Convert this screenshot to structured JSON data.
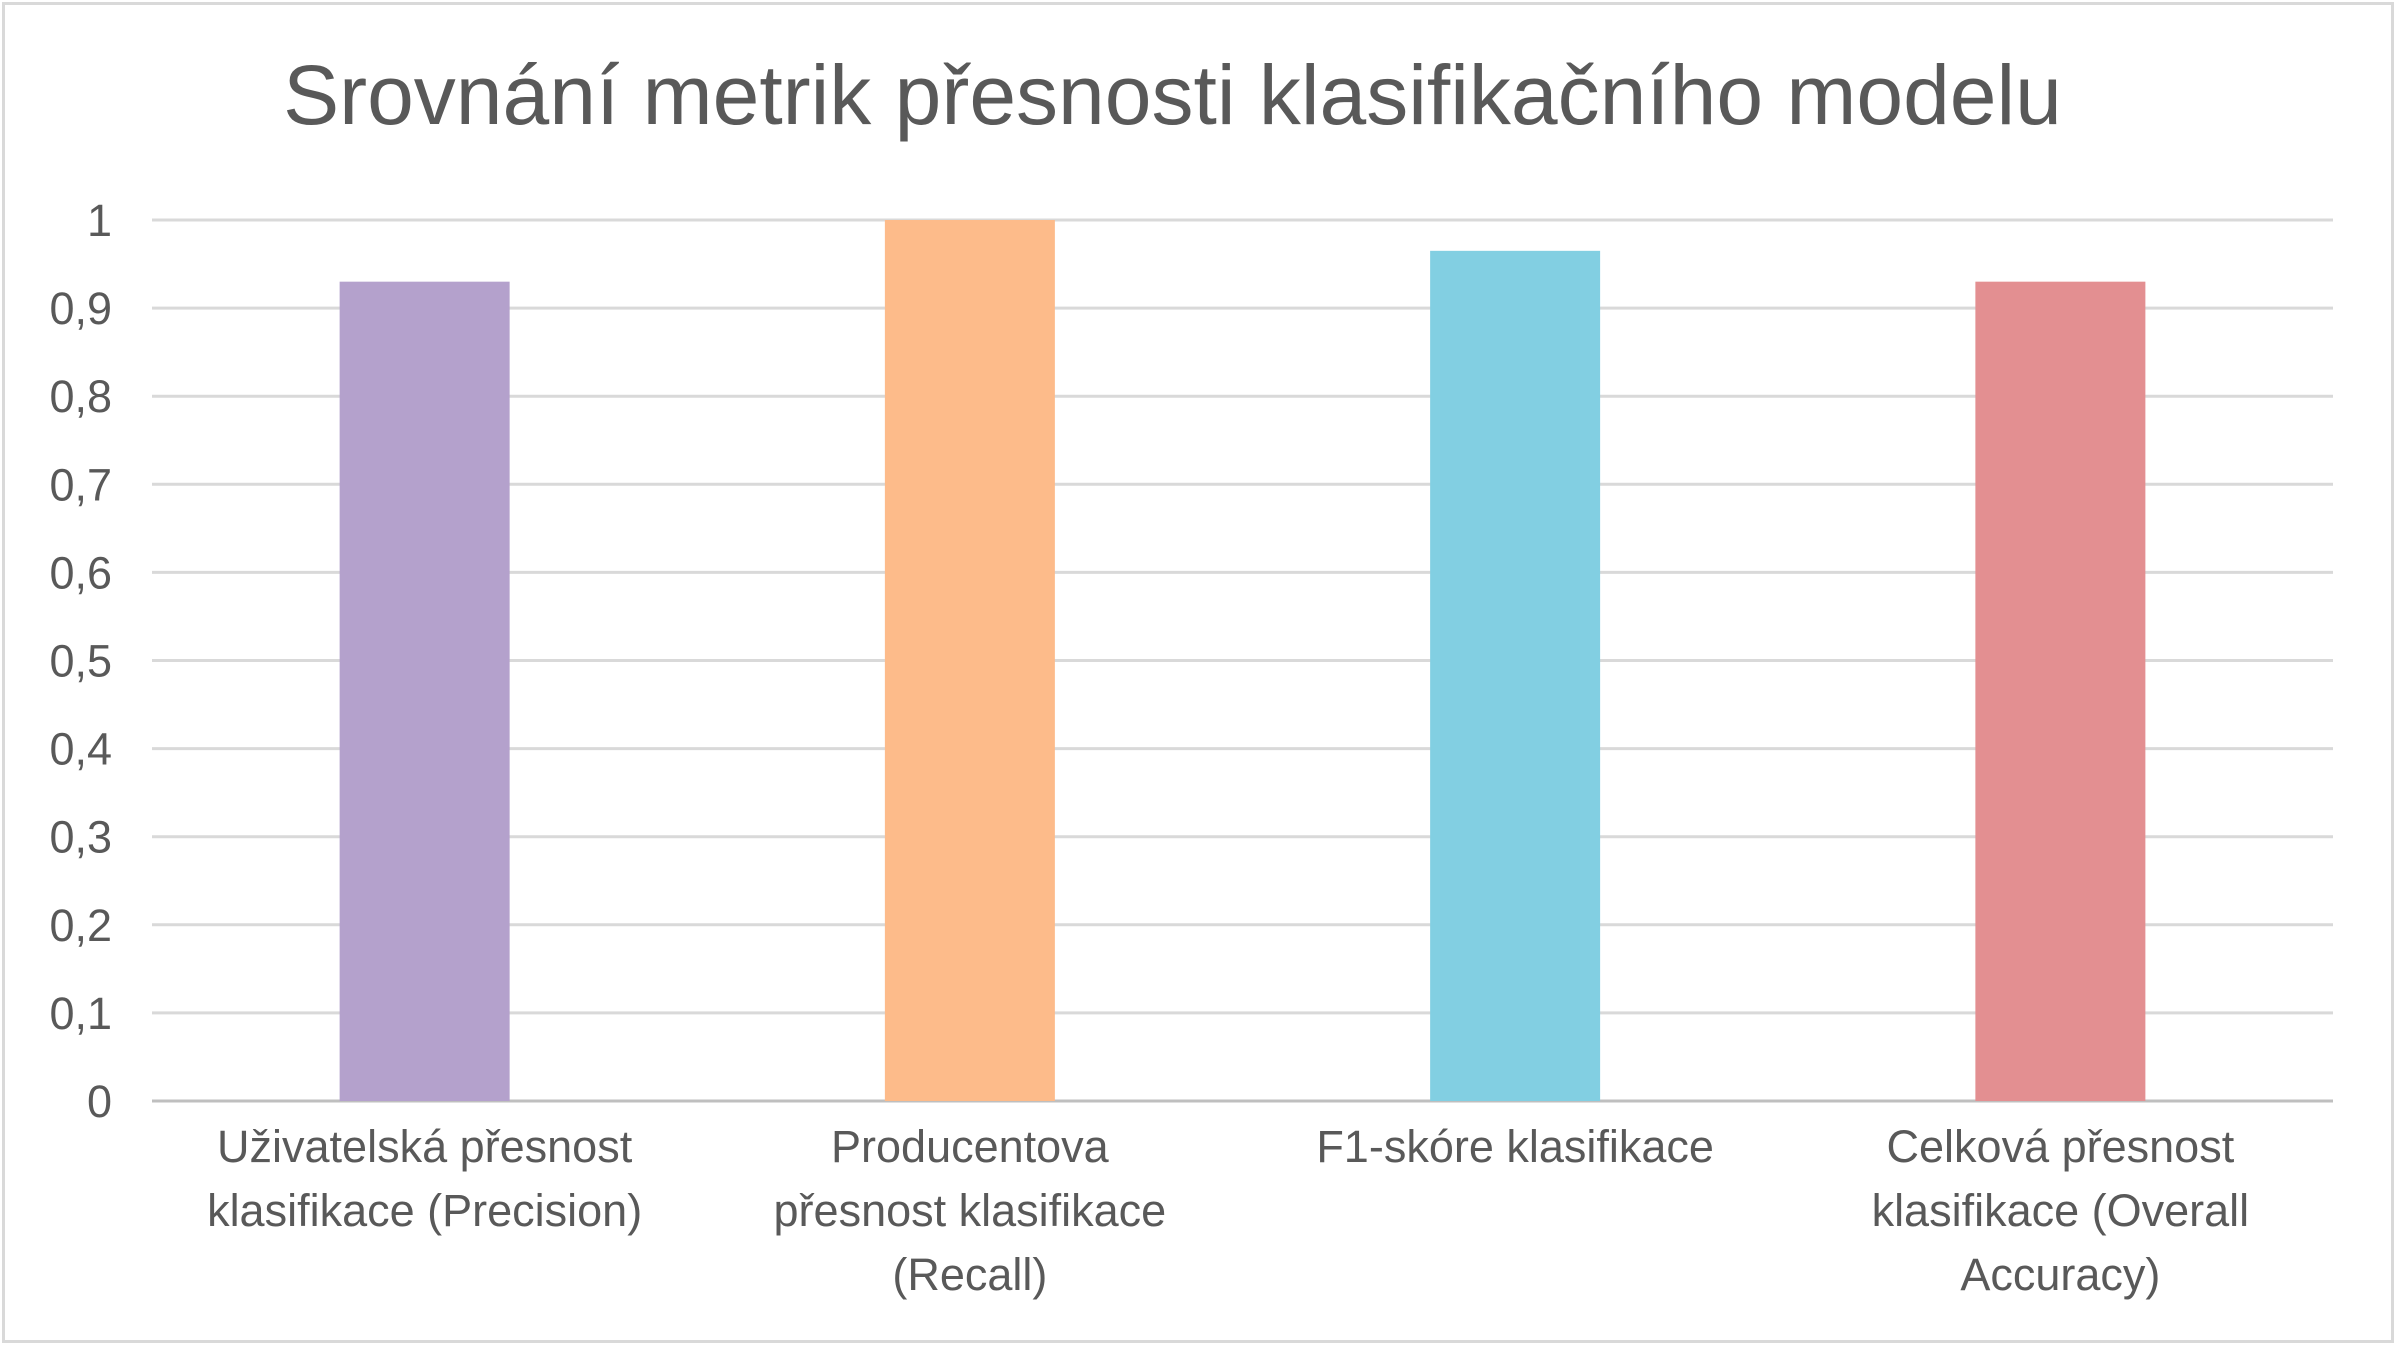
{
  "chart_data": {
    "type": "bar",
    "title": "Srovnání metrik přesnosti klasifikačního modelu",
    "xlabel": "",
    "ylabel": "",
    "categories": [
      [
        "Uživatelská přesnost",
        "klasifikace (Precision)"
      ],
      [
        "Producentova",
        "přesnost klasifikace",
        "(Recall)"
      ],
      [
        "F1-skóre klasifikace"
      ],
      [
        "Celková přesnost",
        "klasifikace (Overall",
        "Accuracy)"
      ]
    ],
    "values": [
      0.93,
      1.0,
      0.965,
      0.93
    ],
    "colors": [
      "#b4a1cc",
      "#fdbb8a",
      "#82cfe2",
      "#e38f91"
    ],
    "ylim": [
      0,
      1
    ],
    "yticks": [
      "0",
      "0,1",
      "0,2",
      "0,3",
      "0,4",
      "0,5",
      "0,6",
      "0,7",
      "0,8",
      "0,9",
      "1"
    ],
    "grid": true,
    "legend": "none"
  }
}
